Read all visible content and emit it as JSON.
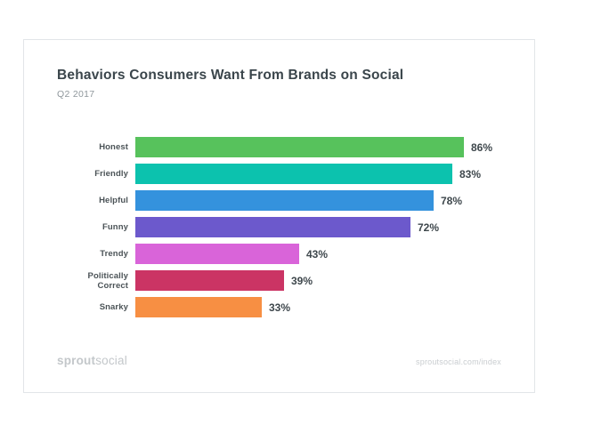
{
  "card": {
    "title": "Behaviors Consumers Want From Brands on Social",
    "subtitle": "Q2 2017",
    "footer": {
      "logo_bold": "sprout",
      "logo_light": "social",
      "link": "sproutsocial.com/index"
    }
  },
  "chart_data": {
    "type": "bar",
    "orientation": "horizontal",
    "title": "Behaviors Consumers Want From Brands on Social",
    "subtitle": "Q2 2017",
    "categories": [
      "Honest",
      "Friendly",
      "Helpful",
      "Funny",
      "Trendy",
      "Politically Correct",
      "Snarky"
    ],
    "values": [
      86,
      83,
      78,
      72,
      43,
      39,
      33
    ],
    "value_labels": [
      "86%",
      "83%",
      "78%",
      "72%",
      "43%",
      "39%",
      "33%"
    ],
    "unit": "%",
    "bar_colors": [
      "#57c25c",
      "#0cc2ae",
      "#3492dd",
      "#6c59cc",
      "#d964d9",
      "#cb3464",
      "#f78f43"
    ],
    "xlim": [
      0,
      100
    ],
    "grid": false,
    "legend": false,
    "value_label_position": "right-of-bar"
  }
}
